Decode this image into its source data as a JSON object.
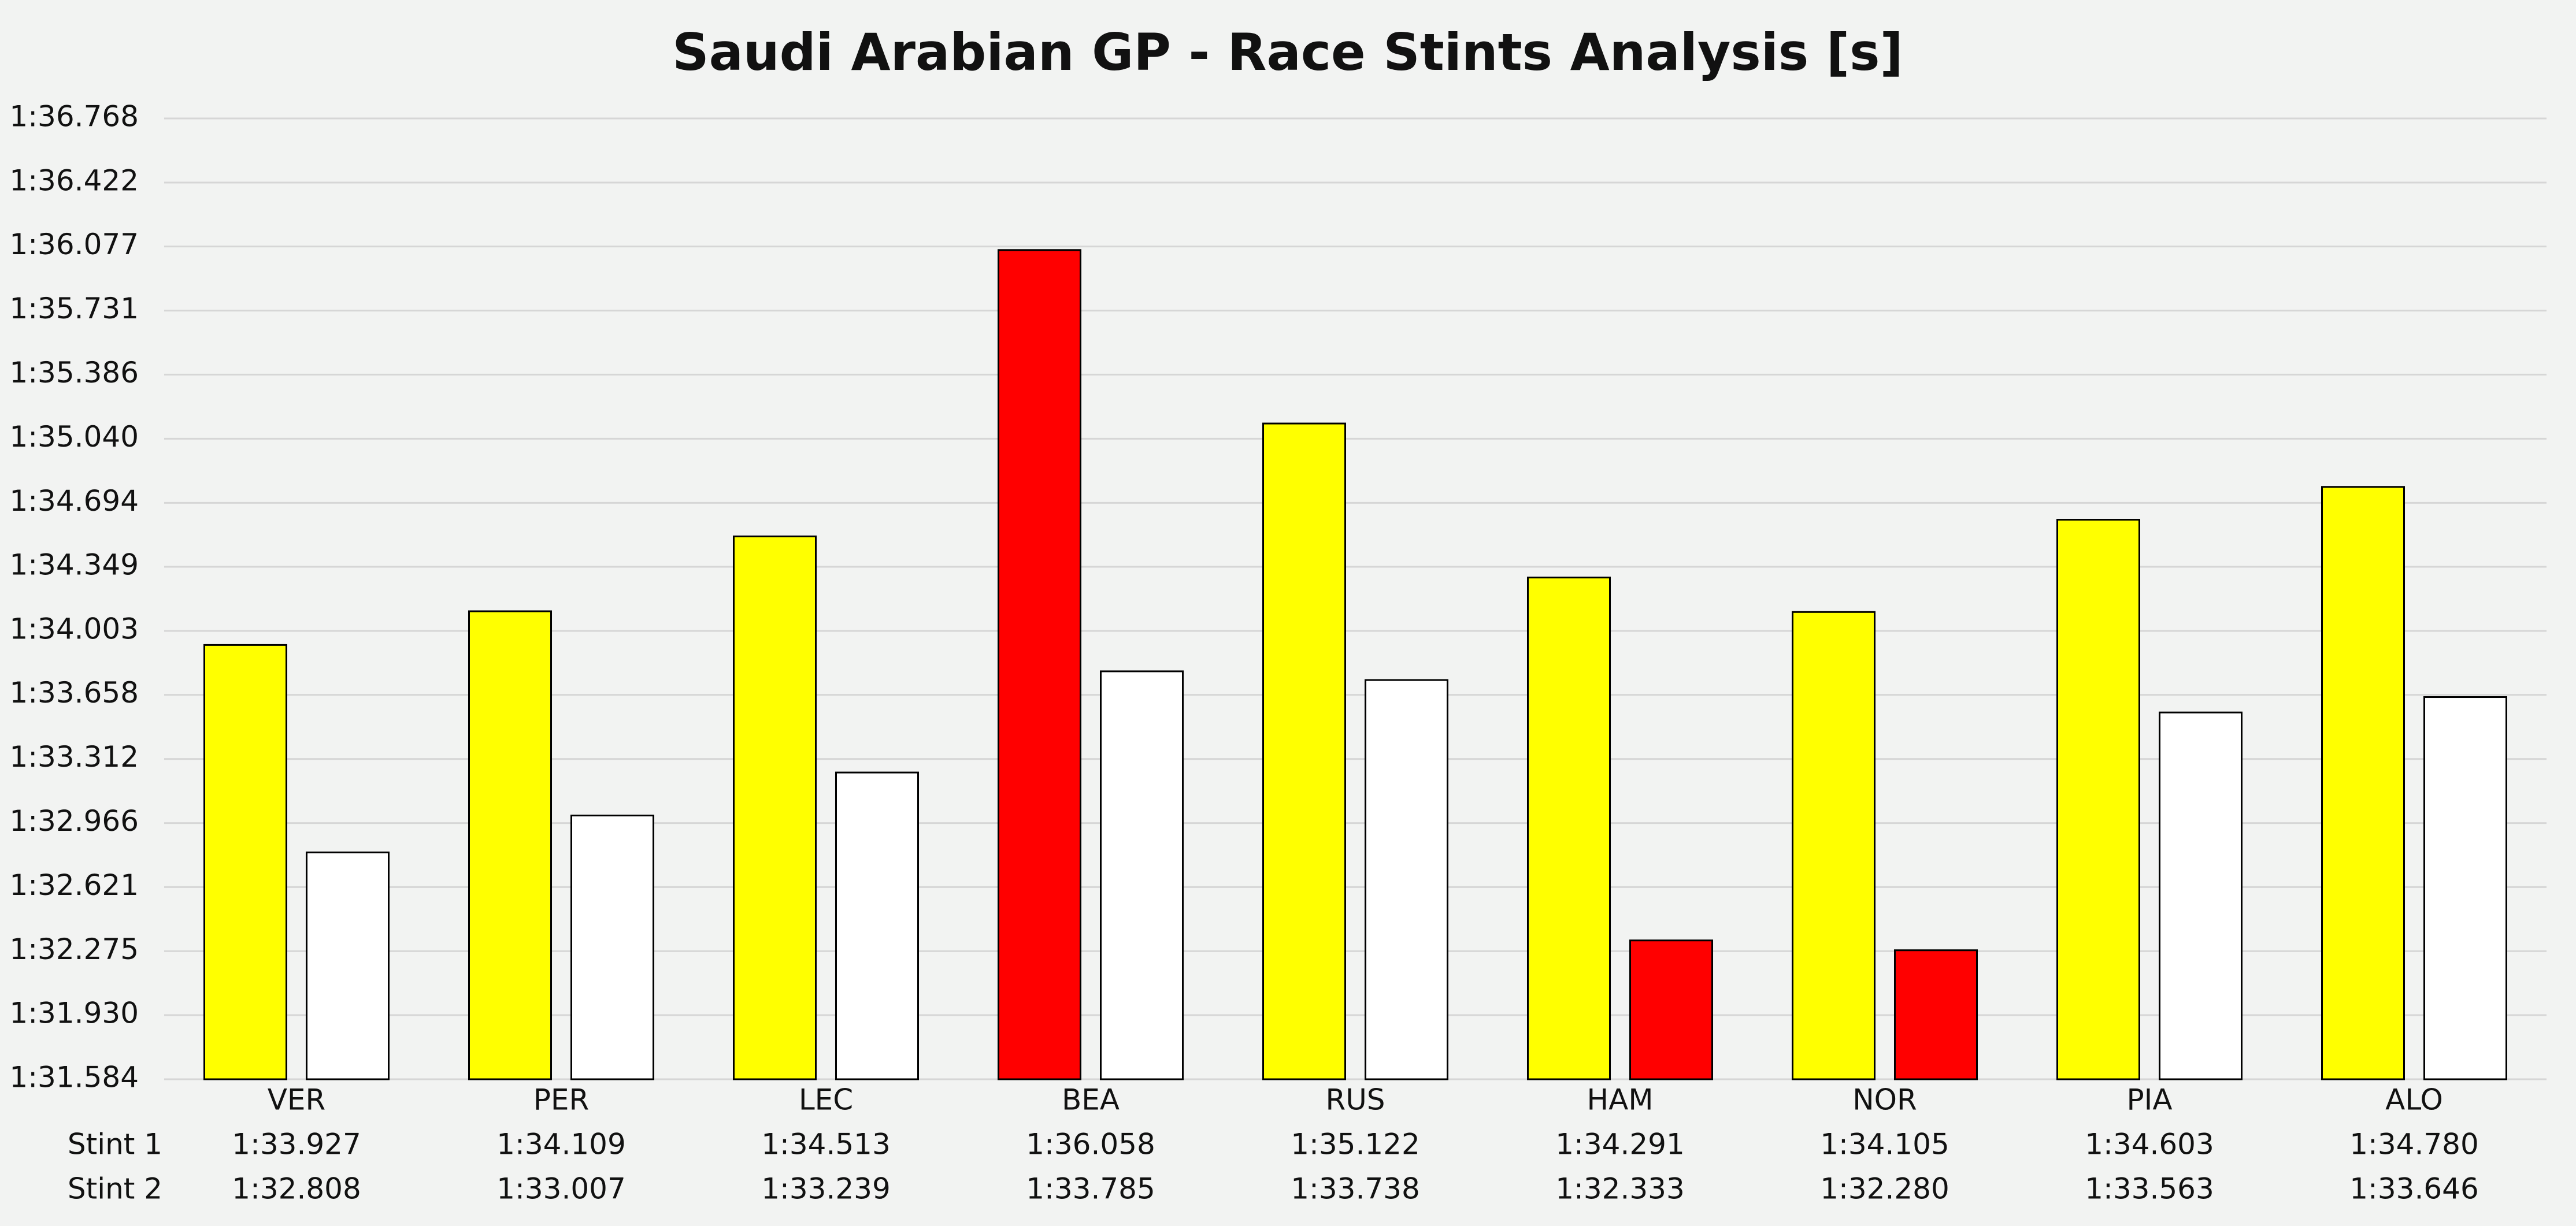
{
  "chart_data": {
    "type": "bar",
    "title": "Saudi Arabian GP - Race Stints Analysis [s]",
    "categories": [
      "VER",
      "PER",
      "LEC",
      "BEA",
      "RUS",
      "HAM",
      "NOR",
      "PIA",
      "ALO"
    ],
    "series": [
      {
        "name": "Stint 1",
        "values": [
          93.927,
          94.109,
          94.513,
          96.058,
          95.122,
          94.291,
          94.105,
          94.603,
          94.78
        ],
        "value_labels": [
          "1:33.927",
          "1:34.109",
          "1:34.513",
          "1:36.058",
          "1:35.122",
          "1:34.291",
          "1:34.105",
          "1:34.603",
          "1:34.780"
        ],
        "colors": [
          "#ffff00",
          "#ffff00",
          "#ffff00",
          "#ff0000",
          "#ffff00",
          "#ffff00",
          "#ffff00",
          "#ffff00",
          "#ffff00"
        ]
      },
      {
        "name": "Stint 2",
        "values": [
          92.808,
          93.007,
          93.239,
          93.785,
          93.738,
          92.333,
          92.28,
          93.563,
          93.646
        ],
        "value_labels": [
          "1:32.808",
          "1:33.007",
          "1:33.239",
          "1:33.785",
          "1:33.738",
          "1:32.333",
          "1:32.280",
          "1:33.563",
          "1:33.646"
        ],
        "colors": [
          "#ffffff",
          "#ffffff",
          "#ffffff",
          "#ffffff",
          "#ffffff",
          "#ff0000",
          "#ff0000",
          "#ffffff",
          "#ffffff"
        ]
      }
    ],
    "ylim": [
      91.584,
      96.768
    ],
    "yticks": [
      {
        "value": 91.584,
        "label": "1:31.584"
      },
      {
        "value": 91.93,
        "label": "1:31.930"
      },
      {
        "value": 92.275,
        "label": "1:32.275"
      },
      {
        "value": 92.621,
        "label": "1:32.621"
      },
      {
        "value": 92.966,
        "label": "1:32.966"
      },
      {
        "value": 93.312,
        "label": "1:33.312"
      },
      {
        "value": 93.658,
        "label": "1:33.658"
      },
      {
        "value": 94.003,
        "label": "1:34.003"
      },
      {
        "value": 94.349,
        "label": "1:34.349"
      },
      {
        "value": 94.694,
        "label": "1:34.694"
      },
      {
        "value": 95.04,
        "label": "1:35.040"
      },
      {
        "value": 95.386,
        "label": "1:35.386"
      },
      {
        "value": 95.731,
        "label": "1:35.731"
      },
      {
        "value": 96.077,
        "label": "1:36.077"
      },
      {
        "value": 96.422,
        "label": "1:36.422"
      },
      {
        "value": 96.768,
        "label": "1:36.768"
      }
    ],
    "grid": true
  }
}
